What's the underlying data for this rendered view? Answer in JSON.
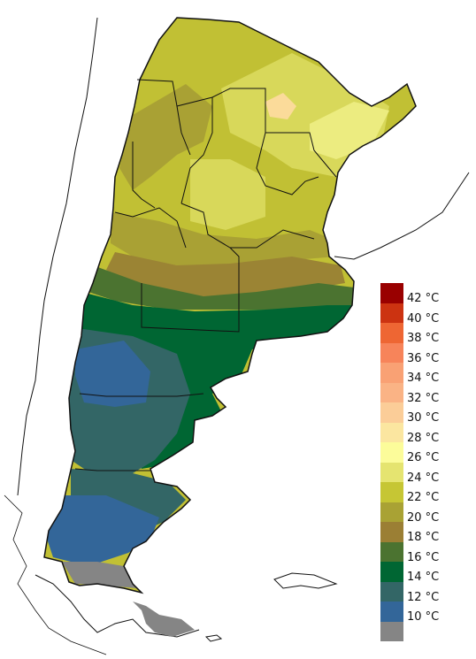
{
  "map": {
    "colors": {
      "ocean": "#ffffff",
      "outline": "#111111",
      "gray": "#858585",
      "t10": "#336699",
      "t12": "#336666",
      "t14": "#006633",
      "t16": "#4b7330",
      "t18": "#9b8434",
      "t20": "#a9a134",
      "t22": "#c1c034",
      "t24": "#d8d85a",
      "t26": "#ecec80",
      "t28": "#fbf19a",
      "t30": "#fbdb9a"
    }
  },
  "legend": {
    "items": [
      {
        "label": "42 °C",
        "color": "#990000"
      },
      {
        "label": "40 °C",
        "color": "#cc3311"
      },
      {
        "label": "38 °C",
        "color": "#ee6633"
      },
      {
        "label": "36 °C",
        "color": "#f7845a"
      },
      {
        "label": "34 °C",
        "color": "#f9a174"
      },
      {
        "label": "32 °C",
        "color": "#fab385"
      },
      {
        "label": "30 °C",
        "color": "#fbcd98"
      },
      {
        "label": "28 °C",
        "color": "#fbe6a0"
      },
      {
        "label": "26 °C",
        "color": "#fcfc9a"
      },
      {
        "label": "24 °C",
        "color": "#e5e470"
      },
      {
        "label": "22 °C",
        "color": "#c6c634"
      },
      {
        "label": "20 °C",
        "color": "#a9a234"
      },
      {
        "label": "18 °C",
        "color": "#9b7f34"
      },
      {
        "label": "16 °C",
        "color": "#4b7330"
      },
      {
        "label": "14 °C",
        "color": "#006633"
      },
      {
        "label": "12 °C",
        "color": "#336666"
      },
      {
        "label": "10 °C",
        "color": "#336699"
      },
      {
        "label": "",
        "color": "#858585"
      }
    ]
  }
}
